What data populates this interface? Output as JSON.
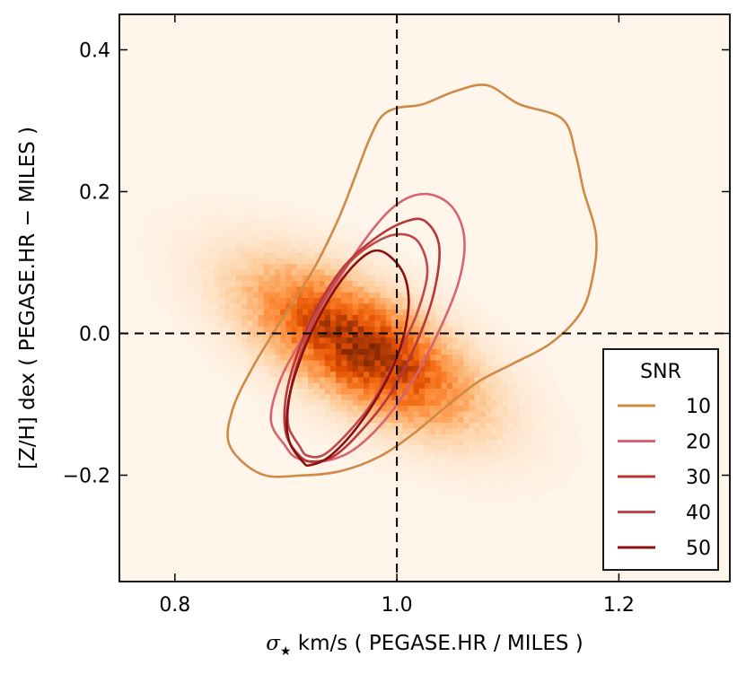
{
  "chart_data": {
    "type": "heatmap",
    "title": "",
    "xlabel": {
      "symbol": "σ",
      "subscript": "★",
      "text": " km/s ( PEGASE.HR / MILES )"
    },
    "ylabel": "[Z/H] dex ( PEGASE.HR − MILES )",
    "xlim": [
      0.75,
      1.3
    ],
    "ylim": [
      -0.35,
      0.45
    ],
    "xticks": [
      {
        "value": 0.8,
        "label": "0.8"
      },
      {
        "value": 1.0,
        "label": "1.0"
      },
      {
        "value": 1.2,
        "label": "1.2"
      }
    ],
    "yticks": [
      {
        "value": -0.2,
        "label": "−0.2"
      },
      {
        "value": 0.0,
        "label": "0.0"
      },
      {
        "value": 0.2,
        "label": "0.2"
      },
      {
        "value": 0.4,
        "label": "0.4"
      }
    ],
    "reference_lines": {
      "x": 1.0,
      "y": 0.0
    },
    "density": {
      "center": [
        0.968,
        -0.02
      ],
      "sigma_major": 0.125,
      "sigma_minor": 0.034,
      "angle_deg": 60,
      "grid": [
        110,
        100
      ],
      "seed": 7
    },
    "legend": {
      "title": "SNR",
      "position": "lower-right"
    },
    "series": [
      {
        "name": "10",
        "color": "#d08a48",
        "points": [
          [
            0.8776,
            -0.1984
          ],
          [
            0.8496,
            -0.1589
          ],
          [
            0.8518,
            -0.1082
          ],
          [
            0.8701,
            -0.0477
          ],
          [
            0.8965,
            0.02
          ],
          [
            0.9253,
            0.0915
          ],
          [
            0.9477,
            0.1627
          ],
          [
            0.9632,
            0.2247
          ],
          [
            0.9749,
            0.2726
          ],
          [
            0.9862,
            0.3058
          ],
          [
            1.0008,
            0.3182
          ],
          [
            1.0227,
            0.3229
          ],
          [
            1.0531,
            0.3418
          ],
          [
            1.0813,
            0.35
          ],
          [
            1.11,
            0.3236
          ],
          [
            1.1493,
            0.3021
          ],
          [
            1.1613,
            0.2512
          ],
          [
            1.1681,
            0.2024
          ],
          [
            1.1795,
            0.1376
          ],
          [
            1.1763,
            0.0786
          ],
          [
            1.1653,
            0.0284
          ],
          [
            1.138,
            -0.0145
          ],
          [
            1.1033,
            -0.0437
          ],
          [
            1.0735,
            -0.068
          ],
          [
            1.0439,
            -0.1038
          ],
          [
            1.0143,
            -0.1422
          ],
          [
            0.9839,
            -0.1741
          ],
          [
            0.9495,
            -0.1941
          ],
          [
            0.9147,
            -0.2003
          ],
          [
            0.8776,
            -0.1984
          ]
        ]
      },
      {
        "name": "20",
        "color": "#d76470",
        "points": [
          [
            0.8995,
            -0.1587
          ],
          [
            0.8865,
            -0.1224
          ],
          [
            0.8952,
            -0.0649
          ],
          [
            0.9176,
            0.0003
          ],
          [
            0.9443,
            0.0684
          ],
          [
            0.97,
            0.1296
          ],
          [
            0.9938,
            0.1739
          ],
          [
            1.0156,
            0.1945
          ],
          [
            1.0366,
            0.1931
          ],
          [
            1.0535,
            0.1703
          ],
          [
            1.061,
            0.1279
          ],
          [
            1.0553,
            0.0707
          ],
          [
            1.0381,
            0.0041
          ],
          [
            1.0147,
            -0.0656
          ],
          [
            0.9874,
            -0.1254
          ],
          [
            0.9584,
            -0.1666
          ],
          [
            0.93,
            -0.1812
          ],
          [
            0.9095,
            -0.1754
          ],
          [
            0.8995,
            -0.1587
          ]
        ]
      },
      {
        "name": "30",
        "color": "#b8383a",
        "points": [
          [
            0.9119,
            -0.1718
          ],
          [
            0.9001,
            -0.1409
          ],
          [
            0.9001,
            -0.0887
          ],
          [
            0.9107,
            -0.0269
          ],
          [
            0.9287,
            0.0382
          ],
          [
            0.9534,
            0.0963
          ],
          [
            0.9833,
            0.1373
          ],
          [
            1.0099,
            0.1589
          ],
          [
            1.0264,
            0.1572
          ],
          [
            1.0382,
            0.1222
          ],
          [
            1.0331,
            0.0554
          ],
          [
            1.0175,
            -0.0138
          ],
          [
            0.9944,
            -0.0844
          ],
          [
            0.9689,
            -0.1356
          ],
          [
            0.9437,
            -0.1727
          ],
          [
            0.9236,
            -0.1808
          ],
          [
            0.9119,
            -0.1718
          ]
        ]
      },
      {
        "name": "40",
        "color": "#c04848",
        "points": [
          [
            0.9126,
            -0.1598
          ],
          [
            0.9019,
            -0.1272
          ],
          [
            0.9048,
            -0.0762
          ],
          [
            0.9166,
            -0.0142
          ],
          [
            0.9347,
            0.0486
          ],
          [
            0.9589,
            0.1026
          ],
          [
            0.9867,
            0.1334
          ],
          [
            1.0062,
            0.1396
          ],
          [
            1.0204,
            0.1267
          ],
          [
            1.0275,
            0.0865
          ],
          [
            1.0183,
            0.0289
          ],
          [
            0.9998,
            -0.0339
          ],
          [
            0.9783,
            -0.0965
          ],
          [
            0.9552,
            -0.1413
          ],
          [
            0.9341,
            -0.1713
          ],
          [
            0.9192,
            -0.1723
          ],
          [
            0.9126,
            -0.1598
          ]
        ]
      },
      {
        "name": "50",
        "color": "#8a1010",
        "points": [
          [
            0.9153,
            -0.1813
          ],
          [
            0.9026,
            -0.1499
          ],
          [
            0.9019,
            -0.0999
          ],
          [
            0.912,
            -0.0409
          ],
          [
            0.9288,
            0.0202
          ],
          [
            0.9503,
            0.0754
          ],
          [
            0.9706,
            0.1094
          ],
          [
            0.985,
            0.1164
          ],
          [
            0.9995,
            0.0999
          ],
          [
            1.0083,
            0.0741
          ],
          [
            1.0104,
            0.0341
          ],
          [
            1.0021,
            -0.0246
          ],
          [
            0.9843,
            -0.0846
          ],
          [
            0.9616,
            -0.1376
          ],
          [
            0.9387,
            -0.1743
          ],
          [
            0.9221,
            -0.1857
          ],
          [
            0.9153,
            -0.1813
          ]
        ]
      }
    ]
  }
}
